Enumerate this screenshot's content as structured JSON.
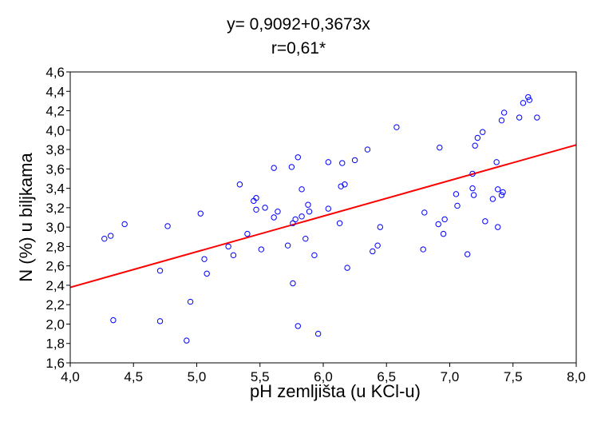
{
  "chart_data": {
    "type": "scatter",
    "title": "y= 0,9092+0,3673x",
    "subtitle": "r=0,61*",
    "xlabel": "pH zemljišta (u KCl-u)",
    "ylabel": "N (%) u biljkama",
    "xlim": [
      4.0,
      8.0
    ],
    "ylim": [
      1.6,
      4.6
    ],
    "x_ticks": [
      "4,0",
      "4,5",
      "5,0",
      "5,5",
      "6,0",
      "6,5",
      "7,0",
      "7,5",
      "8,0"
    ],
    "y_ticks": [
      "1,6",
      "1,8",
      "2,0",
      "2,2",
      "2,4",
      "2,6",
      "2,8",
      "3,0",
      "3,2",
      "3,4",
      "3,6",
      "3,8",
      "4,0",
      "4,2",
      "4,4",
      "4,6"
    ],
    "grid": false,
    "colors": {
      "points": "#0000ff",
      "line": "#ff0000"
    },
    "regression": {
      "intercept": 0.9092,
      "slope": 0.3673
    },
    "points": [
      {
        "x": 4.27,
        "y": 2.88
      },
      {
        "x": 4.32,
        "y": 2.91
      },
      {
        "x": 4.43,
        "y": 3.03
      },
      {
        "x": 4.34,
        "y": 2.04
      },
      {
        "x": 4.71,
        "y": 2.55
      },
      {
        "x": 4.77,
        "y": 3.01
      },
      {
        "x": 4.71,
        "y": 2.03
      },
      {
        "x": 4.92,
        "y": 1.83
      },
      {
        "x": 4.95,
        "y": 2.23
      },
      {
        "x": 5.03,
        "y": 3.14
      },
      {
        "x": 5.06,
        "y": 2.67
      },
      {
        "x": 5.08,
        "y": 2.52
      },
      {
        "x": 5.25,
        "y": 2.8
      },
      {
        "x": 5.29,
        "y": 2.71
      },
      {
        "x": 5.34,
        "y": 3.44
      },
      {
        "x": 5.4,
        "y": 2.93
      },
      {
        "x": 5.45,
        "y": 3.27
      },
      {
        "x": 5.47,
        "y": 3.3
      },
      {
        "x": 5.47,
        "y": 3.18
      },
      {
        "x": 5.51,
        "y": 2.77
      },
      {
        "x": 5.54,
        "y": 3.2
      },
      {
        "x": 5.61,
        "y": 3.61
      },
      {
        "x": 5.61,
        "y": 3.1
      },
      {
        "x": 5.64,
        "y": 3.16
      },
      {
        "x": 5.72,
        "y": 2.81
      },
      {
        "x": 5.75,
        "y": 3.62
      },
      {
        "x": 5.76,
        "y": 3.04
      },
      {
        "x": 5.78,
        "y": 3.08
      },
      {
        "x": 5.76,
        "y": 2.42
      },
      {
        "x": 5.8,
        "y": 3.72
      },
      {
        "x": 5.83,
        "y": 3.39
      },
      {
        "x": 5.83,
        "y": 3.11
      },
      {
        "x": 5.86,
        "y": 2.88
      },
      {
        "x": 5.88,
        "y": 3.23
      },
      {
        "x": 5.89,
        "y": 3.16
      },
      {
        "x": 5.8,
        "y": 1.98
      },
      {
        "x": 5.93,
        "y": 2.71
      },
      {
        "x": 5.96,
        "y": 1.9
      },
      {
        "x": 6.04,
        "y": 3.67
      },
      {
        "x": 6.04,
        "y": 3.19
      },
      {
        "x": 6.13,
        "y": 3.04
      },
      {
        "x": 6.14,
        "y": 3.42
      },
      {
        "x": 6.15,
        "y": 3.66
      },
      {
        "x": 6.17,
        "y": 3.44
      },
      {
        "x": 6.19,
        "y": 2.58
      },
      {
        "x": 6.25,
        "y": 3.69
      },
      {
        "x": 6.35,
        "y": 3.8
      },
      {
        "x": 6.39,
        "y": 2.75
      },
      {
        "x": 6.43,
        "y": 2.81
      },
      {
        "x": 6.45,
        "y": 3.0
      },
      {
        "x": 6.58,
        "y": 4.03
      },
      {
        "x": 6.79,
        "y": 2.77
      },
      {
        "x": 6.8,
        "y": 3.15
      },
      {
        "x": 6.91,
        "y": 3.03
      },
      {
        "x": 6.92,
        "y": 3.82
      },
      {
        "x": 6.95,
        "y": 2.93
      },
      {
        "x": 6.96,
        "y": 3.08
      },
      {
        "x": 7.05,
        "y": 3.34
      },
      {
        "x": 7.06,
        "y": 3.22
      },
      {
        "x": 7.14,
        "y": 2.72
      },
      {
        "x": 7.18,
        "y": 3.55
      },
      {
        "x": 7.18,
        "y": 3.4
      },
      {
        "x": 7.19,
        "y": 3.33
      },
      {
        "x": 7.2,
        "y": 3.84
      },
      {
        "x": 7.22,
        "y": 3.92
      },
      {
        "x": 7.26,
        "y": 3.98
      },
      {
        "x": 7.28,
        "y": 3.06
      },
      {
        "x": 7.34,
        "y": 3.29
      },
      {
        "x": 7.37,
        "y": 3.67
      },
      {
        "x": 7.38,
        "y": 3.39
      },
      {
        "x": 7.38,
        "y": 3.0
      },
      {
        "x": 7.41,
        "y": 3.33
      },
      {
        "x": 7.42,
        "y": 3.36
      },
      {
        "x": 7.41,
        "y": 4.1
      },
      {
        "x": 7.43,
        "y": 4.18
      },
      {
        "x": 7.55,
        "y": 4.13
      },
      {
        "x": 7.58,
        "y": 4.28
      },
      {
        "x": 7.62,
        "y": 4.34
      },
      {
        "x": 7.63,
        "y": 4.31
      },
      {
        "x": 7.69,
        "y": 4.13
      }
    ]
  }
}
